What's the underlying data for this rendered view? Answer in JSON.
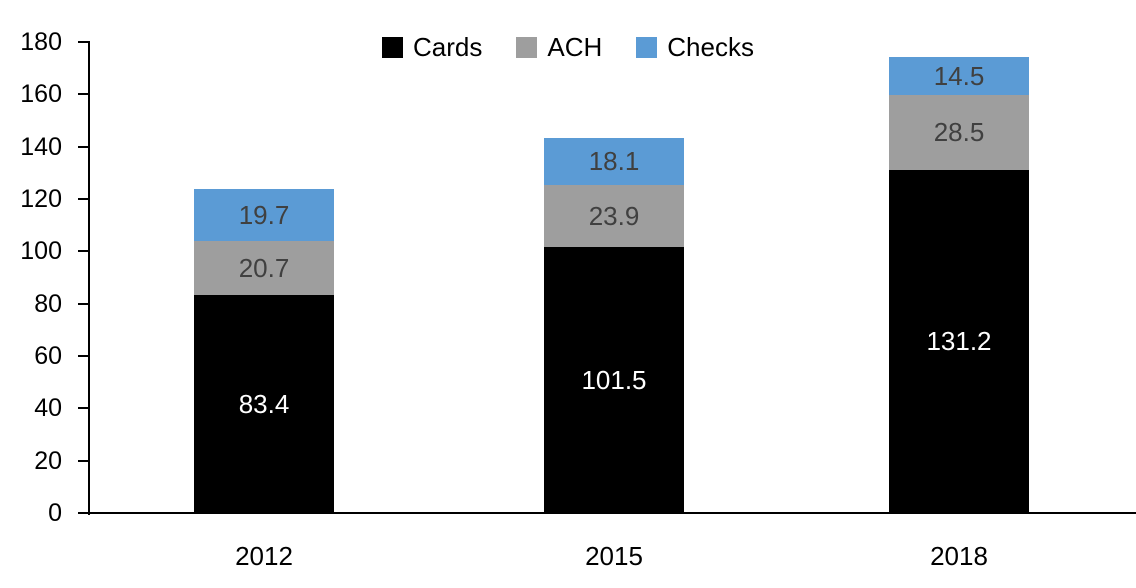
{
  "chart_data": {
    "type": "bar",
    "stacked": true,
    "title": "",
    "xlabel": "",
    "ylabel": "",
    "categories": [
      "2012",
      "2015",
      "2018"
    ],
    "series": [
      {
        "name": "Cards",
        "color": "#000000",
        "label_color": "#ffffff",
        "values": [
          83.4,
          101.5,
          131.2
        ]
      },
      {
        "name": "ACH",
        "color": "#9e9e9e",
        "label_color": "#404040",
        "values": [
          20.7,
          23.9,
          28.5
        ]
      },
      {
        "name": "Checks",
        "color": "#5b9bd5",
        "label_color": "#404040",
        "values": [
          19.7,
          18.1,
          14.5
        ]
      }
    ],
    "ylim": [
      0,
      180
    ],
    "ytick_step": 20,
    "yticks": [
      0,
      20,
      40,
      60,
      80,
      100,
      120,
      140,
      160,
      180
    ],
    "grid": false,
    "legend_position": "top-center",
    "axis_color": "#000000",
    "background_color": "#ffffff"
  }
}
